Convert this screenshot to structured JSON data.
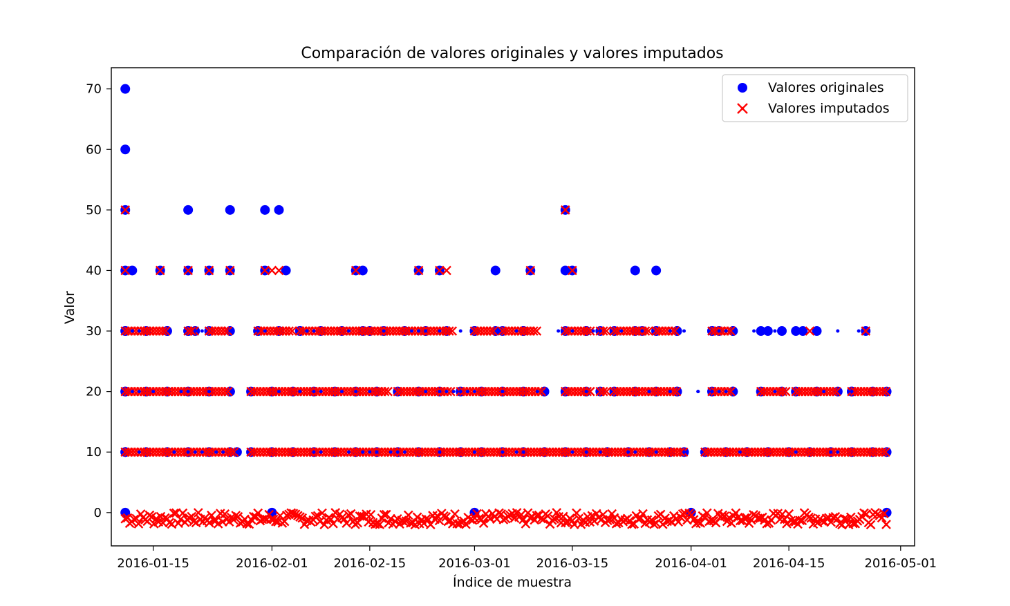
{
  "chart_data": {
    "type": "scatter",
    "title": "Comparación de valores originales y valores imputados",
    "xlabel": "Índice de muestra",
    "ylabel": "Valor",
    "x_axis_type": "date",
    "xlim": [
      "2016-01-09",
      "2016-05-03"
    ],
    "ylim": [
      -5.5,
      73.5
    ],
    "x_ticks": [
      "2016-01-15",
      "2016-02-01",
      "2016-02-15",
      "2016-03-01",
      "2016-03-15",
      "2016-04-01",
      "2016-04-15",
      "2016-05-01"
    ],
    "y_ticks": [
      0,
      10,
      20,
      30,
      40,
      50,
      60,
      70
    ],
    "grid": false,
    "legend": "top-right",
    "colors": {
      "original": "#0000ff",
      "imputed": "#ff0000"
    },
    "series": [
      {
        "name": "Valores originales",
        "marker": "circle",
        "color": "#0000ff",
        "points": [
          [
            "2016-01-11",
            70
          ],
          [
            "2016-01-11",
            60
          ],
          [
            "2016-01-11",
            50
          ],
          [
            "2016-01-20",
            50
          ],
          [
            "2016-01-26",
            50
          ],
          [
            "2016-01-31",
            50
          ],
          [
            "2016-02-02",
            50
          ],
          [
            "2016-03-14",
            50
          ],
          [
            "2016-01-11",
            40
          ],
          [
            "2016-01-12",
            40
          ],
          [
            "2016-01-16",
            40
          ],
          [
            "2016-01-20",
            40
          ],
          [
            "2016-01-23",
            40
          ],
          [
            "2016-01-26",
            40
          ],
          [
            "2016-01-31",
            40
          ],
          [
            "2016-02-03",
            40
          ],
          [
            "2016-02-13",
            40
          ],
          [
            "2016-02-14",
            40
          ],
          [
            "2016-02-22",
            40
          ],
          [
            "2016-02-25",
            40
          ],
          [
            "2016-03-04",
            40
          ],
          [
            "2016-03-09",
            40
          ],
          [
            "2016-03-14",
            40
          ],
          [
            "2016-03-15",
            40
          ],
          [
            "2016-03-24",
            40
          ],
          [
            "2016-03-27",
            40
          ],
          [
            "2016-01-11",
            30
          ],
          [
            "2016-01-17",
            30
          ],
          [
            "2016-01-20",
            30
          ],
          [
            "2016-01-21",
            30
          ],
          [
            "2016-01-30",
            30
          ],
          [
            "2016-02-05",
            30
          ],
          [
            "2016-02-15",
            30
          ],
          [
            "2016-03-01",
            30
          ],
          [
            "2016-03-08",
            30
          ],
          [
            "2016-03-17",
            30
          ],
          [
            "2016-03-25",
            30
          ],
          [
            "2016-03-27",
            30
          ],
          [
            "2016-03-30",
            30
          ],
          [
            "2016-04-04",
            30
          ],
          [
            "2016-04-05",
            30
          ],
          [
            "2016-04-07",
            30
          ],
          [
            "2016-04-11",
            30
          ],
          [
            "2016-04-12",
            30
          ],
          [
            "2016-04-14",
            30
          ],
          [
            "2016-04-16",
            30
          ],
          [
            "2016-04-17",
            30
          ],
          [
            "2016-04-19",
            30
          ],
          [
            "2016-04-26",
            30
          ],
          [
            "2016-01-11",
            20
          ],
          [
            "2016-01-26",
            20
          ],
          [
            "2016-03-11",
            20
          ],
          [
            "2016-03-30",
            20
          ],
          [
            "2016-04-07",
            20
          ],
          [
            "2016-04-24",
            20
          ],
          [
            "2016-04-29",
            20
          ],
          [
            "2016-01-11",
            10
          ],
          [
            "2016-01-27",
            10
          ],
          [
            "2016-03-31",
            10
          ],
          [
            "2016-04-29",
            10
          ],
          [
            "2016-01-11",
            0
          ],
          [
            "2016-02-01",
            0
          ],
          [
            "2016-03-01",
            0
          ],
          [
            "2016-04-01",
            0
          ],
          [
            "2016-04-29",
            0
          ]
        ]
      },
      {
        "name": "Valores imputados",
        "marker": "x",
        "color": "#ff0000",
        "points": [
          [
            "2016-01-11",
            50
          ],
          [
            "2016-03-14",
            50
          ],
          [
            "2016-01-11",
            40
          ],
          [
            "2016-01-16",
            40
          ],
          [
            "2016-01-20",
            40
          ],
          [
            "2016-01-23",
            40
          ],
          [
            "2016-01-26",
            40
          ],
          [
            "2016-01-31",
            40
          ],
          [
            "2016-02-01",
            40
          ],
          [
            "2016-02-02",
            40
          ],
          [
            "2016-02-13",
            40
          ],
          [
            "2016-02-22",
            40
          ],
          [
            "2016-02-25",
            40
          ],
          [
            "2016-02-26",
            40
          ],
          [
            "2016-03-09",
            40
          ],
          [
            "2016-03-15",
            40
          ],
          [
            "2016-04-18",
            30
          ],
          [
            "2016-04-26",
            30
          ]
        ],
        "dense_bands": [
          {
            "y": 30,
            "segments": [
              [
                "2016-01-11",
                "2016-01-17"
              ],
              [
                "2016-01-20",
                "2016-01-21"
              ],
              [
                "2016-01-23",
                "2016-01-26"
              ],
              [
                "2016-01-30",
                "2016-02-04"
              ],
              [
                "2016-02-05",
                "2016-02-27"
              ],
              [
                "2016-03-01",
                "2016-03-04"
              ],
              [
                "2016-03-05",
                "2016-03-10"
              ],
              [
                "2016-03-14",
                "2016-03-18"
              ],
              [
                "2016-03-19",
                "2016-03-20"
              ],
              [
                "2016-03-21",
                "2016-03-26"
              ],
              [
                "2016-03-27",
                "2016-03-30"
              ],
              [
                "2016-04-04",
                "2016-04-07"
              ]
            ]
          },
          {
            "y": 20,
            "segments": [
              [
                "2016-01-11",
                "2016-01-26"
              ],
              [
                "2016-01-29",
                "2016-02-18"
              ],
              [
                "2016-02-19",
                "2016-02-27"
              ],
              [
                "2016-02-28",
                "2016-03-11"
              ],
              [
                "2016-03-14",
                "2016-03-18"
              ],
              [
                "2016-03-19",
                "2016-03-20"
              ],
              [
                "2016-03-21",
                "2016-03-30"
              ],
              [
                "2016-04-04",
                "2016-04-07"
              ],
              [
                "2016-04-11",
                "2016-04-15"
              ],
              [
                "2016-04-16",
                "2016-04-22"
              ],
              [
                "2016-04-24",
                "2016-04-29"
              ]
            ]
          },
          {
            "y": 10,
            "segments": [
              [
                "2016-01-11",
                "2016-01-27"
              ],
              [
                "2016-01-29",
                "2016-03-31"
              ],
              [
                "2016-04-03",
                "2016-04-29"
              ]
            ]
          },
          {
            "y": 0,
            "segments": [
              [
                "2016-01-11",
                "2016-04-29"
              ]
            ],
            "jitter": [
              -2,
              0
            ]
          }
        ]
      }
    ]
  }
}
